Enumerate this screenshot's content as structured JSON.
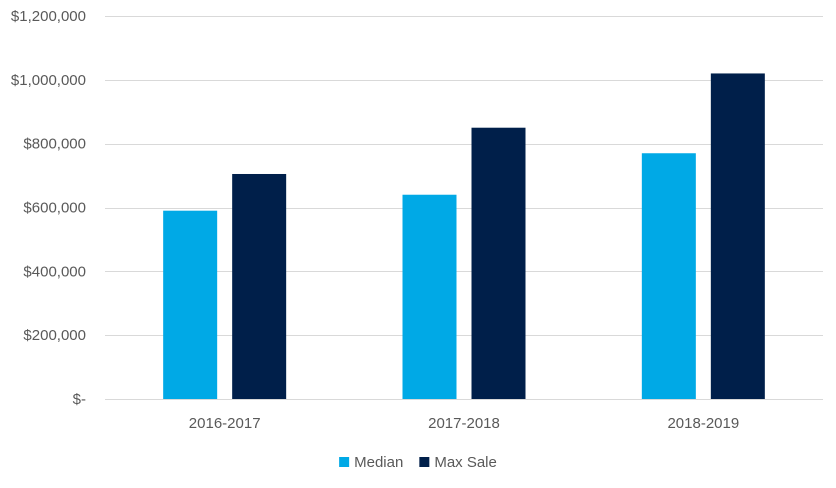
{
  "chart_data": {
    "type": "bar",
    "categories": [
      "2016-2017",
      "2017-2018",
      "2018-2019"
    ],
    "series": [
      {
        "name": "Median",
        "color": "#00a9e6",
        "values": [
          590000,
          640000,
          770000
        ]
      },
      {
        "name": "Max Sale",
        "color": "#001f4a",
        "values": [
          705000,
          850000,
          1020000
        ]
      }
    ],
    "ylim": [
      0,
      1200000
    ],
    "yticks": [
      0,
      200000,
      400000,
      600000,
      800000,
      1000000,
      1200000
    ],
    "ytick_labels": [
      "$-",
      "$200,000",
      "$400,000",
      "$600,000",
      "$800,000",
      "$1,000,000",
      "$1,200,000"
    ],
    "grid": true,
    "legend_position": "bottom-center",
    "gridline_color": "#d9d9d9"
  }
}
